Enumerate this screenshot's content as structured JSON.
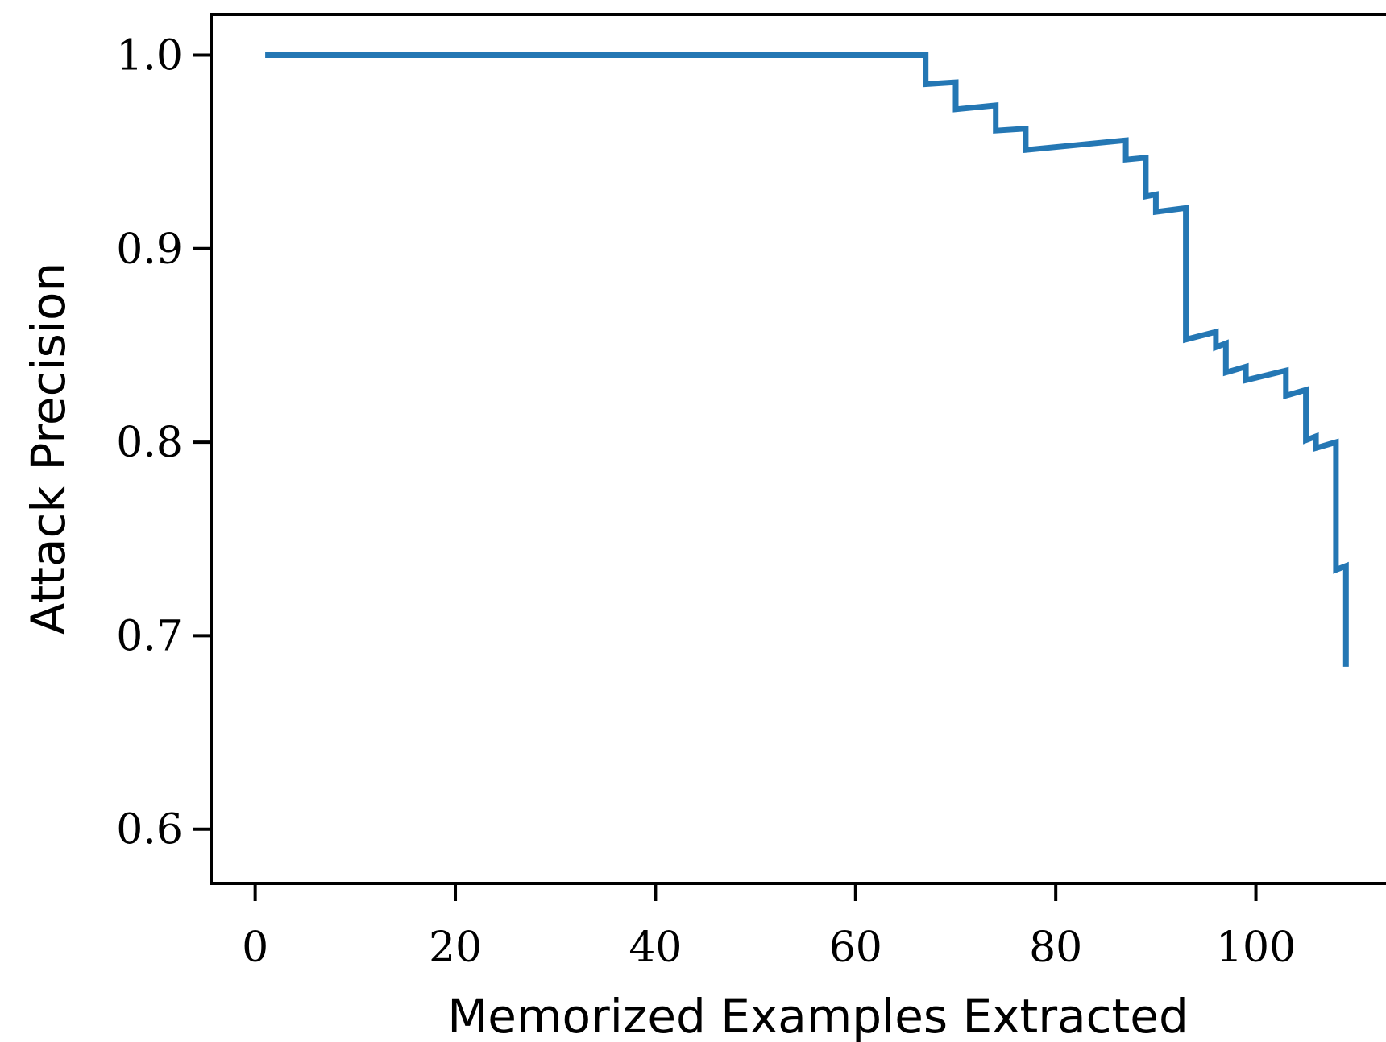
{
  "chart_data": {
    "type": "line",
    "title": "",
    "xlabel": "Memorized Examples Extracted",
    "ylabel": "Attack Precision",
    "xlim": [
      -4.4,
      113
    ],
    "ylim": [
      0.572,
      1.021
    ],
    "xticks": [
      0,
      20,
      40,
      60,
      80,
      100
    ],
    "yticks": [
      0.6,
      0.7,
      0.8,
      0.9,
      1.0
    ],
    "xtick_labels": [
      "0",
      "20",
      "40",
      "60",
      "80",
      "100"
    ],
    "ytick_labels": [
      "0.6",
      "0.7",
      "0.8",
      "0.9",
      "1.0"
    ],
    "grid": false,
    "legend": "none",
    "series": [
      {
        "color": "#2477b4",
        "x": [
          1,
          67,
          67,
          70,
          70,
          74,
          74,
          77,
          77,
          87,
          87,
          89,
          89,
          90,
          90,
          93,
          93,
          96,
          96,
          97,
          97,
          99,
          99,
          103,
          103,
          105,
          105,
          106,
          106,
          108,
          108,
          109,
          109
        ],
        "y": [
          1.0,
          1.0,
          0.985,
          0.986,
          0.972,
          0.974,
          0.961,
          0.962,
          0.951,
          0.956,
          0.946,
          0.947,
          0.927,
          0.928,
          0.919,
          0.921,
          0.853,
          0.857,
          0.849,
          0.851,
          0.836,
          0.839,
          0.832,
          0.837,
          0.824,
          0.827,
          0.801,
          0.803,
          0.797,
          0.8,
          0.734,
          0.736,
          0.684
        ]
      }
    ]
  }
}
